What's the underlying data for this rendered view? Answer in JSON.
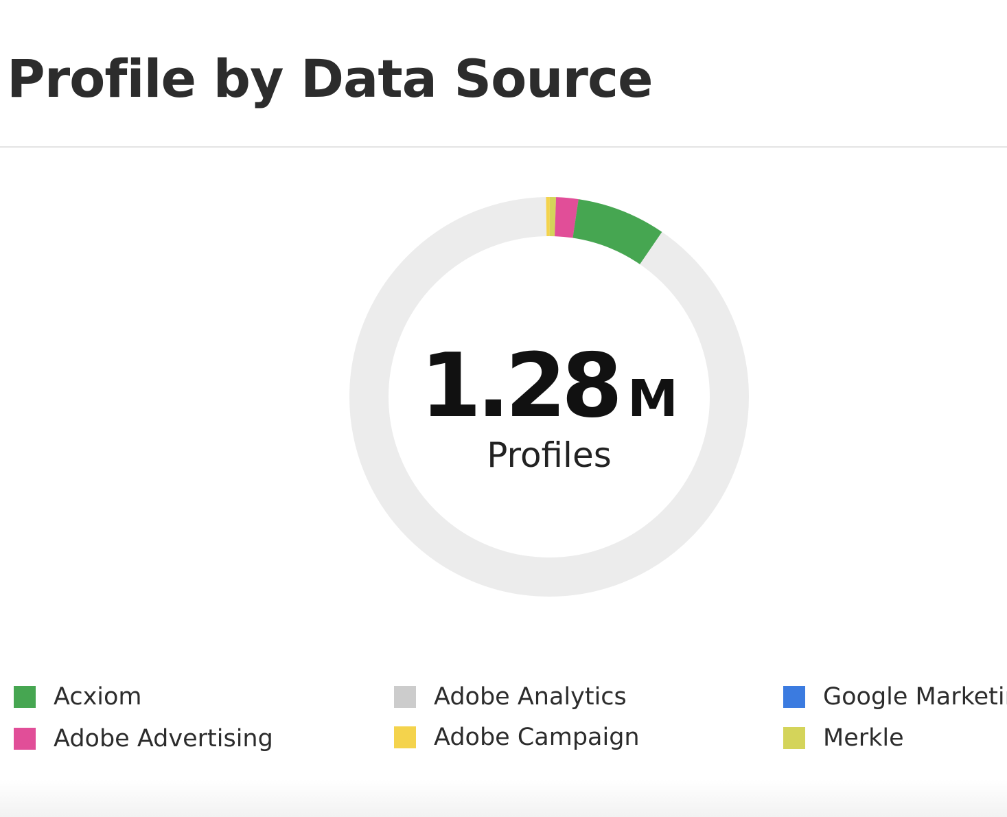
{
  "chart_data": {
    "type": "pie",
    "variant": "donut",
    "title": "Profile by Data Source",
    "center_value": "1.28",
    "center_unit": "M",
    "center_label": "Profiles",
    "series": [
      {
        "name": "Adobe Campaign",
        "color": "#f4d34c",
        "percent": 0.3
      },
      {
        "name": "Merkle",
        "color": "#d4d45a",
        "percent": 0.5
      },
      {
        "name": "Adobe Advertising",
        "color": "#e14e98",
        "percent": 1.8
      },
      {
        "name": "Acxiom",
        "color": "#46a651",
        "percent": 7.2
      },
      {
        "name": "Google Marketin",
        "color": "#3b7be0",
        "percent": 0
      },
      {
        "name": "Adobe Analytics",
        "color": "#cccccc",
        "percent": 0
      }
    ],
    "remainder_color": "#ececec",
    "legend": [
      {
        "label": "Acxiom",
        "color": "#46a651"
      },
      {
        "label": "Adobe Advertising",
        "color": "#e14e98"
      },
      {
        "label": "Adobe Analytics",
        "color": "#cccccc"
      },
      {
        "label": "Adobe Campaign",
        "color": "#f4d34c"
      },
      {
        "label": "Google Marketin",
        "color": "#3b7be0"
      },
      {
        "label": "Merkle",
        "color": "#d4d45a"
      }
    ]
  }
}
